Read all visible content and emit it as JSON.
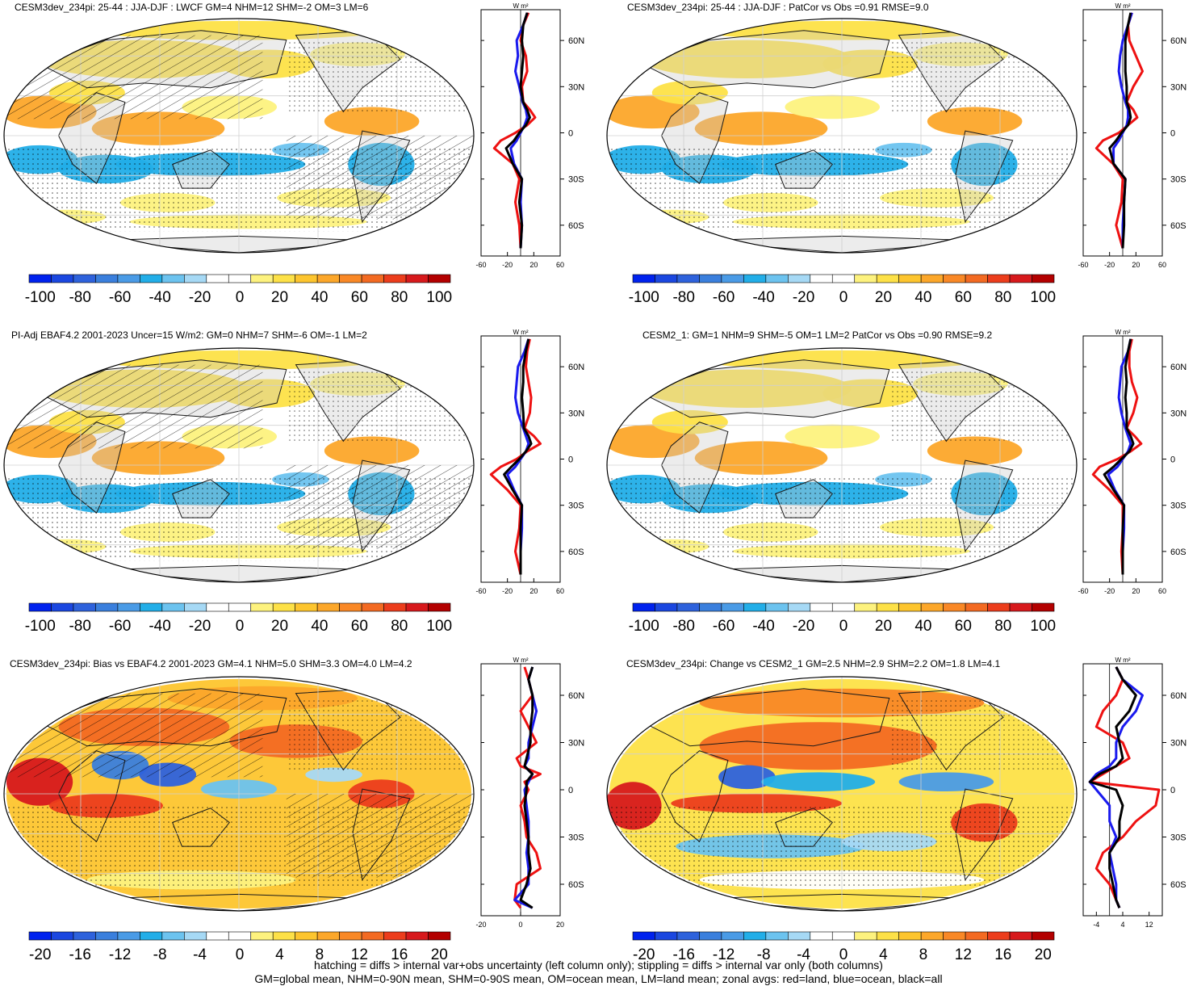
{
  "palette": {
    "diverging": [
      "#0022ee",
      "#1b47e0",
      "#2e62dc",
      "#3a7fdd",
      "#4a9be6",
      "#22aee8",
      "#6cc3ef",
      "#a6d9f5",
      "#ffffff",
      "#ffffff",
      "#fdf27e",
      "#fde147",
      "#fdc52e",
      "#fca72a",
      "#f98826",
      "#f36a22",
      "#ec3d1c",
      "#d7191c",
      "#b30000"
    ],
    "land": "#c8c8c8",
    "land_outline": "#1a1a1a",
    "grid": "#d0d0d0",
    "zonal_land": "#ee1111",
    "zonal_ocean": "#1a1aee",
    "zonal_all": "#000000"
  },
  "zonal_unit": "W m²",
  "panels": [
    {
      "id": "top-left",
      "title": "CESM3dev_234pi: 25-44 : JJA-DJF : LWCF GM=4 NHM=12 SHM=-2 OM=3 LM=6",
      "hatching": true,
      "colorbar_ticks": [
        "-100",
        "-80",
        "-60",
        "-40",
        "-20",
        "0",
        "20",
        "40",
        "60",
        "80",
        "100"
      ],
      "chart_data": {
        "type": "line",
        "title": "CESM3dev_234pi: 25-44 : JJA-DJF : LWCF GM=4 NHM=12 SHM=-2 OM=3 LM=6",
        "xlabel": "W m²",
        "ylabel": "",
        "xlim": [
          -60,
          60
        ],
        "ylim": [
          -80,
          80
        ],
        "xticks": [
          "-60",
          "-20",
          "20",
          "60"
        ],
        "yticks": [
          "60N",
          "30N",
          "0",
          "30S",
          "60S"
        ],
        "lat": [
          -75,
          -60,
          -45,
          -30,
          -20,
          -10,
          -5,
          0,
          5,
          10,
          15,
          20,
          30,
          40,
          50,
          60,
          70,
          78
        ],
        "series": [
          {
            "name": "land",
            "values": [
              0,
              -2,
              -8,
              -2,
              -12,
              -40,
              -30,
              -8,
              10,
              22,
              14,
              4,
              2,
              10,
              8,
              0,
              4,
              12
            ]
          },
          {
            "name": "ocean",
            "values": [
              0,
              2,
              0,
              2,
              -10,
              -15,
              -6,
              0,
              6,
              10,
              8,
              3,
              -2,
              -8,
              -4,
              -6,
              4,
              10
            ]
          },
          {
            "name": "all",
            "values": [
              0,
              2,
              -2,
              2,
              -12,
              -22,
              -10,
              -2,
              8,
              14,
              10,
              4,
              0,
              2,
              4,
              2,
              4,
              10
            ]
          }
        ]
      }
    },
    {
      "id": "top-right",
      "title": "CESM3dev_234pi: 25-44 : JJA-DJF : PatCor vs Obs =0.91 RMSE=9.0",
      "hatching": false,
      "colorbar_ticks": [
        "-100",
        "-80",
        "-60",
        "-40",
        "-20",
        "0",
        "20",
        "40",
        "60",
        "80",
        "100"
      ],
      "chart_data": {
        "type": "line",
        "title": "CESM3dev_234pi: 25-44 : JJA-DJF : PatCor vs Obs =0.91 RMSE=9.0",
        "xlabel": "W m²",
        "ylabel": "",
        "xlim": [
          -60,
          60
        ],
        "ylim": [
          -80,
          80
        ],
        "xticks": [
          "-60",
          "-20",
          "20",
          "60"
        ],
        "yticks": [
          "60N",
          "30N",
          "0",
          "30S",
          "60S"
        ],
        "lat": [
          -75,
          -60,
          -45,
          -30,
          -20,
          -10,
          -5,
          0,
          5,
          10,
          15,
          20,
          30,
          40,
          50,
          60,
          70,
          78
        ],
        "series": [
          {
            "name": "land",
            "values": [
              0,
              -10,
              -2,
              0,
              -15,
              -40,
              -30,
              -6,
              8,
              22,
              16,
              6,
              16,
              30,
              20,
              10,
              8,
              14
            ]
          },
          {
            "name": "ocean",
            "values": [
              0,
              0,
              2,
              4,
              -14,
              -14,
              -6,
              0,
              6,
              8,
              8,
              4,
              -2,
              -6,
              -4,
              0,
              8,
              14
            ]
          },
          {
            "name": "all",
            "values": [
              0,
              2,
              2,
              4,
              -14,
              -20,
              -10,
              -2,
              8,
              12,
              10,
              6,
              6,
              4,
              4,
              4,
              8,
              12
            ]
          }
        ]
      }
    },
    {
      "id": "middle-left",
      "title": "PI-Adj EBAF4.2 2001-2023 Uncer=15 W/m2: GM=0 NHM=7 SHM=-6 OM=-1 LM=2",
      "hatching": true,
      "colorbar_ticks": [
        "-100",
        "-80",
        "-60",
        "-40",
        "-20",
        "0",
        "20",
        "40",
        "60",
        "80",
        "100"
      ],
      "chart_data": {
        "type": "line",
        "title": "PI-Adj EBAF4.2 2001-2023 Uncer=15 W/m2: GM=0 NHM=7 SHM=-6 OM=-1 LM=2",
        "xlabel": "W m²",
        "ylabel": "",
        "xlim": [
          -60,
          60
        ],
        "ylim": [
          -80,
          80
        ],
        "xticks": [
          "-60",
          "-20",
          "20",
          "60"
        ],
        "yticks": [
          "60N",
          "30N",
          "0",
          "30S",
          "60S"
        ],
        "lat": [
          -75,
          -60,
          -45,
          -30,
          -20,
          -10,
          -5,
          0,
          5,
          10,
          15,
          20,
          30,
          40,
          50,
          60,
          70,
          78
        ],
        "series": [
          {
            "name": "land",
            "values": [
              0,
              -8,
              -2,
              0,
              -20,
              -45,
              -30,
              -6,
              10,
              30,
              20,
              6,
              14,
              16,
              12,
              8,
              10,
              14
            ]
          },
          {
            "name": "ocean",
            "values": [
              0,
              0,
              2,
              2,
              -10,
              -20,
              -8,
              0,
              8,
              12,
              8,
              4,
              -4,
              -8,
              -6,
              -4,
              6,
              12
            ]
          },
          {
            "name": "all",
            "values": [
              0,
              0,
              0,
              2,
              -12,
              -25,
              -14,
              -2,
              8,
              16,
              12,
              5,
              4,
              2,
              4,
              4,
              8,
              12
            ]
          }
        ]
      }
    },
    {
      "id": "middle-right",
      "title": "CESM2_1: GM=1 NHM=9 SHM=-5 OM=1 LM=2 PatCor vs Obs =0.90 RMSE=9.2",
      "hatching": false,
      "colorbar_ticks": [
        "-100",
        "-80",
        "-60",
        "-40",
        "-20",
        "0",
        "20",
        "40",
        "60",
        "80",
        "100"
      ],
      "chart_data": {
        "type": "line",
        "title": "CESM2_1: GM=1 NHM=9 SHM=-5 OM=1 LM=2 PatCor vs Obs =0.90 RMSE=9.2",
        "xlabel": "W m²",
        "ylabel": "",
        "xlim": [
          -60,
          60
        ],
        "ylim": [
          -80,
          80
        ],
        "xticks": [
          "-60",
          "-20",
          "20",
          "60"
        ],
        "yticks": [
          "60N",
          "30N",
          "0",
          "30S",
          "60S"
        ],
        "lat": [
          -75,
          -60,
          -45,
          -30,
          -20,
          -10,
          -5,
          0,
          5,
          10,
          15,
          20,
          30,
          40,
          50,
          60,
          70,
          78
        ],
        "series": [
          {
            "name": "land",
            "values": [
              0,
              -2,
              0,
              0,
              -20,
              -45,
              -35,
              -8,
              12,
              28,
              18,
              6,
              16,
              22,
              14,
              10,
              10,
              14
            ]
          },
          {
            "name": "ocean",
            "values": [
              0,
              0,
              2,
              2,
              -12,
              -22,
              -8,
              0,
              8,
              12,
              8,
              4,
              -2,
              -6,
              -4,
              -2,
              8,
              12
            ]
          },
          {
            "name": "all",
            "values": [
              0,
              0,
              0,
              2,
              -14,
              -28,
              -14,
              -2,
              10,
              16,
              12,
              6,
              6,
              4,
              6,
              4,
              8,
              12
            ]
          }
        ]
      }
    },
    {
      "id": "bottom-left",
      "title": "CESM3dev_234pi: Bias vs EBAF4.2 2001-2023 GM=4.1 NHM=5.0 SHM=3.3 OM=4.0 LM=4.2",
      "hatching": true,
      "colorbar_ticks": [
        "-20",
        "-16",
        "-12",
        "-8",
        "-4",
        "0",
        "4",
        "8",
        "12",
        "16",
        "20"
      ],
      "chart_data": {
        "type": "line",
        "title": "CESM3dev_234pi: Bias vs EBAF4.2 2001-2023 GM=4.1 NHM=5.0 SHM=3.3 OM=4.0 LM=4.2",
        "xlabel": "W m²",
        "ylabel": "",
        "xlim": [
          -20,
          20
        ],
        "ylim": [
          -80,
          80
        ],
        "xticks": [
          "-20",
          "0",
          "20"
        ],
        "yticks": [
          "60N",
          "30N",
          "0",
          "30S",
          "60S"
        ],
        "lat": [
          -75,
          -70,
          -60,
          -50,
          -40,
          -30,
          -20,
          -10,
          0,
          5,
          10,
          15,
          20,
          30,
          40,
          50,
          60,
          70,
          78
        ],
        "series": [
          {
            "name": "land",
            "values": [
              0,
              -3,
              -2,
              10,
              8,
              3,
              2,
              0,
              4,
              2,
              10,
              0,
              -2,
              8,
              4,
              0,
              6,
              4,
              2
            ]
          },
          {
            "name": "ocean",
            "values": [
              6,
              -3,
              4,
              4,
              3,
              4,
              4,
              3,
              2,
              4,
              6,
              2,
              4,
              4,
              6,
              8,
              6,
              4,
              6
            ]
          },
          {
            "name": "all",
            "values": [
              6,
              0,
              3,
              5,
              4,
              4,
              3,
              2,
              3,
              3,
              6,
              2,
              3,
              5,
              5,
              6,
              6,
              4,
              6
            ]
          }
        ]
      }
    },
    {
      "id": "bottom-right",
      "title": "CESM3dev_234pi: Change vs CESM2_1 GM=2.5 NHM=2.9 SHM=2.2 OM=1.8 LM=4.1",
      "hatching": false,
      "colorbar_ticks": [
        "-20",
        "-16",
        "-12",
        "-8",
        "-4",
        "0",
        "4",
        "8",
        "12",
        "16",
        "20"
      ],
      "chart_data": {
        "type": "line",
        "title": "CESM3dev_234pi: Change vs CESM2_1 GM=2.5 NHM=2.9 SHM=2.2 OM=1.8 LM=4.1",
        "xlabel": "W m²",
        "ylabel": "",
        "xlim": [
          -8,
          16
        ],
        "ylim": [
          -80,
          80
        ],
        "xticks": [
          "-4",
          "4",
          "12"
        ],
        "yticks": [
          "60N",
          "30N",
          "0",
          "30S",
          "60S"
        ],
        "lat": [
          -75,
          -70,
          -60,
          -50,
          -40,
          -30,
          -20,
          -10,
          0,
          5,
          10,
          15,
          20,
          30,
          40,
          50,
          60,
          70,
          78
        ],
        "series": [
          {
            "name": "land",
            "values": [
              3,
              2,
              0,
              -4,
              -2,
              4,
              8,
              14,
              15,
              -6,
              -2,
              2,
              6,
              4,
              -4,
              -2,
              2,
              4,
              2
            ]
          },
          {
            "name": "ocean",
            "values": [
              3,
              2,
              2,
              1,
              0,
              2,
              0,
              0,
              -4,
              -6,
              -4,
              0,
              2,
              2,
              4,
              8,
              10,
              4,
              2
            ]
          },
          {
            "name": "all",
            "values": [
              3,
              2,
              1,
              0,
              0,
              3,
              3,
              4,
              2,
              -6,
              -3,
              2,
              4,
              3,
              2,
              6,
              8,
              4,
              2
            ]
          }
        ]
      }
    }
  ],
  "footer": {
    "line1": "hatching = diffs > internal var+obs uncertainty (left column only); stippling = diffs > internal var only (both columns)",
    "line2": "GM=global mean, NHM=0-90N mean, SHM=0-90S mean, OM=ocean mean, LM=land mean; zonal avgs: red=land, blue=ocean, black=all"
  }
}
